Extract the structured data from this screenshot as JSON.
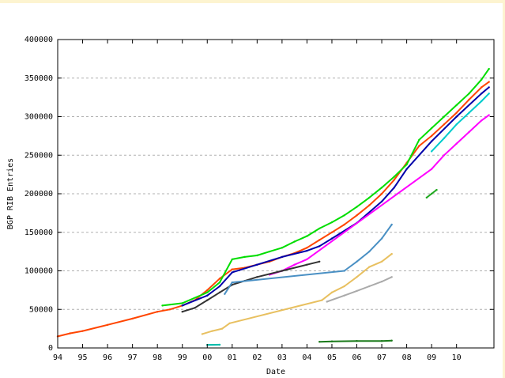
{
  "chart_data": {
    "type": "scatter",
    "title": "",
    "xlabel": "Date",
    "ylabel": "BGP RIB Entries",
    "ylim": [
      0,
      400000
    ],
    "y_ticks": [
      "0",
      "50000",
      "100000",
      "150000",
      "200000",
      "250000",
      "300000",
      "350000",
      "400000"
    ],
    "y_tick_values": [
      0,
      50000,
      100000,
      150000,
      200000,
      250000,
      300000,
      350000,
      400000
    ],
    "x_ticks": [
      "94",
      "95",
      "96",
      "97",
      "98",
      "99",
      "00",
      "01",
      "02",
      "03",
      "04",
      "05",
      "06",
      "07",
      "08",
      "09",
      "10"
    ],
    "x_tick_values": [
      1994,
      1995,
      1996,
      1997,
      1998,
      1999,
      2000,
      2001,
      2002,
      2003,
      2004,
      2005,
      2006,
      2007,
      2008,
      2009,
      2010
    ],
    "xlim": [
      1994,
      2011.5
    ],
    "grid": {
      "horizontal_dashed": true,
      "vertical": false
    },
    "legend": "none",
    "series": [
      {
        "color": "#ff4500",
        "points": [
          [
            1994,
            15000
          ],
          [
            1994.5,
            19000
          ],
          [
            1995,
            22000
          ],
          [
            1996,
            30000
          ],
          [
            1997,
            38000
          ],
          [
            1998,
            47000
          ],
          [
            1998.5,
            50000
          ],
          [
            1999,
            55000
          ],
          [
            1999.5,
            62000
          ],
          [
            2000,
            75000
          ],
          [
            2000.5,
            90000
          ],
          [
            2001,
            102000
          ],
          [
            2001.5,
            104000
          ],
          [
            2002,
            108000
          ],
          [
            2002.5,
            112000
          ],
          [
            2003,
            118000
          ],
          [
            2003.5,
            123000
          ],
          [
            2004,
            130000
          ],
          [
            2004.5,
            140000
          ],
          [
            2005,
            150000
          ],
          [
            2005.5,
            160000
          ],
          [
            2006,
            172000
          ],
          [
            2006.5,
            185000
          ],
          [
            2007,
            200000
          ],
          [
            2007.5,
            218000
          ],
          [
            2008,
            240000
          ],
          [
            2008.5,
            262000
          ],
          [
            2009,
            275000
          ],
          [
            2009.5,
            290000
          ],
          [
            2010,
            305000
          ],
          [
            2010.5,
            322000
          ],
          [
            2011,
            338000
          ],
          [
            2011.3,
            345000
          ]
        ]
      },
      {
        "color": "#00dd00",
        "points": [
          [
            1998.2,
            55000
          ],
          [
            1999,
            58000
          ],
          [
            2000,
            72000
          ],
          [
            2000.5,
            85000
          ],
          [
            2001,
            115000
          ],
          [
            2001.5,
            118000
          ],
          [
            2002,
            120000
          ],
          [
            2002.5,
            125000
          ],
          [
            2003,
            130000
          ],
          [
            2003.5,
            138000
          ],
          [
            2004,
            145000
          ],
          [
            2004.5,
            155000
          ],
          [
            2005,
            163000
          ],
          [
            2005.5,
            172000
          ],
          [
            2006,
            183000
          ],
          [
            2006.5,
            195000
          ],
          [
            2007,
            208000
          ],
          [
            2007.5,
            222000
          ],
          [
            2008,
            238000
          ],
          [
            2008.5,
            270000
          ],
          [
            2009,
            285000
          ],
          [
            2009.5,
            300000
          ],
          [
            2010,
            315000
          ],
          [
            2010.5,
            330000
          ],
          [
            2011,
            348000
          ],
          [
            2011.3,
            362000
          ]
        ]
      },
      {
        "color": "#0000aa",
        "points": [
          [
            1999,
            55000
          ],
          [
            2000,
            68000
          ],
          [
            2000.5,
            80000
          ],
          [
            2001,
            98000
          ],
          [
            2002,
            108000
          ],
          [
            2003,
            118000
          ],
          [
            2004,
            126000
          ],
          [
            2004.5,
            132000
          ],
          [
            2005,
            142000
          ],
          [
            2006,
            162000
          ],
          [
            2007,
            190000
          ],
          [
            2007.5,
            208000
          ],
          [
            2008,
            232000
          ],
          [
            2009,
            268000
          ],
          [
            2010,
            300000
          ],
          [
            2011,
            330000
          ],
          [
            2011.3,
            338000
          ]
        ]
      },
      {
        "color": "#ff00ff",
        "points": [
          [
            2002.5,
            95000
          ],
          [
            2003,
            100000
          ],
          [
            2003.5,
            108000
          ],
          [
            2004,
            115000
          ],
          [
            2009,
            232000
          ],
          [
            2009.5,
            250000
          ],
          [
            2010,
            265000
          ],
          [
            2010.5,
            280000
          ],
          [
            2011,
            295000
          ],
          [
            2011.3,
            302000
          ]
        ]
      },
      {
        "color": "#00cccc",
        "points": [
          [
            2009,
            255000
          ],
          [
            2009.5,
            272000
          ],
          [
            2010,
            290000
          ],
          [
            2010.5,
            305000
          ],
          [
            2011,
            320000
          ],
          [
            2011.3,
            330000
          ]
        ]
      },
      {
        "color": "#333333",
        "points": [
          [
            1999,
            47000
          ],
          [
            1999.5,
            52000
          ],
          [
            2000,
            62000
          ],
          [
            2000.5,
            72000
          ],
          [
            2001,
            82000
          ],
          [
            2001.5,
            87000
          ],
          [
            2002,
            92000
          ],
          [
            2003,
            100000
          ],
          [
            2004,
            108000
          ],
          [
            2004.5,
            112000
          ]
        ]
      },
      {
        "color": "#4a90c4",
        "points": [
          [
            2000.7,
            70000
          ],
          [
            2001,
            85000
          ],
          [
            2005.5,
            100000
          ],
          [
            2006,
            112000
          ],
          [
            2006.5,
            125000
          ],
          [
            2007,
            142000
          ],
          [
            2007.4,
            160000
          ]
        ]
      },
      {
        "color": "#e8c060",
        "points": [
          [
            1999.8,
            18000
          ],
          [
            2000.2,
            22000
          ],
          [
            2000.6,
            25000
          ],
          [
            2000.9,
            32000
          ],
          [
            2004.6,
            62000
          ],
          [
            2005,
            72000
          ],
          [
            2005.5,
            80000
          ],
          [
            2006,
            92000
          ],
          [
            2006.5,
            105000
          ],
          [
            2007,
            112000
          ],
          [
            2007.4,
            122000
          ]
        ]
      },
      {
        "color": "#aaaaaa",
        "points": [
          [
            2004.8,
            60000
          ],
          [
            2005.5,
            68000
          ],
          [
            2006,
            74000
          ],
          [
            2006.5,
            80000
          ],
          [
            2007,
            86000
          ],
          [
            2007.4,
            92000
          ]
        ]
      },
      {
        "color": "#1a7a1a",
        "points": [
          [
            2004.5,
            8000
          ],
          [
            2005,
            8500
          ],
          [
            2006,
            9000
          ],
          [
            2007,
            9000
          ],
          [
            2007.4,
            9500
          ]
        ]
      },
      {
        "color": "#22aa22",
        "points": [
          [
            2008.8,
            195000
          ],
          [
            2009,
            200000
          ],
          [
            2009.2,
            205000
          ]
        ]
      },
      {
        "color": "#00bbaa",
        "points": [
          [
            2000,
            4000
          ],
          [
            2000.5,
            4200
          ]
        ]
      }
    ]
  }
}
